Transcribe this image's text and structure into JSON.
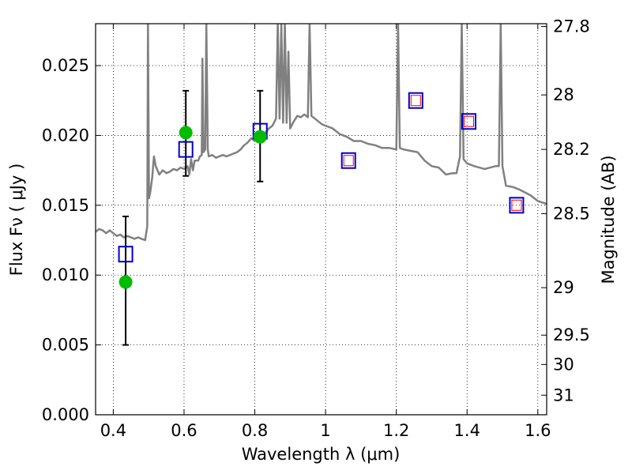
{
  "chart_data": {
    "type": "scatter",
    "xlabel": "Wavelength  λ (μm)",
    "ylabel": "Flux  Fν  ( μJy )",
    "y2label": "Magnitude (AB)",
    "xlim": [
      0.35,
      1.625
    ],
    "ylim": [
      0.0,
      0.028
    ],
    "grid": true,
    "x_ticks": [
      0.4,
      0.6,
      0.8,
      1.0,
      1.2,
      1.4,
      1.6
    ],
    "x_tick_labels": [
      "0.4",
      "0.6",
      "0.8",
      "1",
      "1.2",
      "1.4",
      "1.6"
    ],
    "y_ticks": [
      0.0,
      0.005,
      0.01,
      0.015,
      0.02,
      0.025
    ],
    "y_tick_labels": [
      "0.000",
      "0.005",
      "0.010",
      "0.015",
      "0.020",
      "0.025"
    ],
    "y2_ticks": [
      {
        "label": "27.8",
        "flux": 0.0278
      },
      {
        "label": "28",
        "flux": 0.0229
      },
      {
        "label": "28.2",
        "flux": 0.019
      },
      {
        "label": "28.5",
        "flux": 0.0144
      },
      {
        "label": "29",
        "flux": 0.0091
      },
      {
        "label": "29.5",
        "flux": 0.0057
      },
      {
        "label": "30",
        "flux": 0.0036
      },
      {
        "label": "31",
        "flux": 0.0014
      }
    ],
    "series": [
      {
        "style": "model-spectrum",
        "color": "#808080",
        "points": [
          [
            0.35,
            0.0131
          ],
          [
            0.36,
            0.0133
          ],
          [
            0.37,
            0.0132
          ],
          [
            0.38,
            0.013
          ],
          [
            0.39,
            0.0132
          ],
          [
            0.4,
            0.013
          ],
          [
            0.41,
            0.0128
          ],
          [
            0.42,
            0.0129
          ],
          [
            0.43,
            0.0127
          ],
          [
            0.44,
            0.0128
          ],
          [
            0.45,
            0.0127
          ],
          [
            0.46,
            0.0126
          ],
          [
            0.47,
            0.0127
          ],
          [
            0.48,
            0.0126
          ],
          [
            0.49,
            0.0125
          ],
          [
            0.496,
            0.0135
          ],
          [
            0.498,
            0.028
          ],
          [
            0.501,
            0.0155
          ],
          [
            0.505,
            0.016
          ],
          [
            0.51,
            0.017
          ],
          [
            0.515,
            0.0185
          ],
          [
            0.52,
            0.0178
          ],
          [
            0.53,
            0.0172
          ],
          [
            0.54,
            0.0175
          ],
          [
            0.55,
            0.0173
          ],
          [
            0.56,
            0.0174
          ],
          [
            0.57,
            0.0176
          ],
          [
            0.58,
            0.0175
          ],
          [
            0.59,
            0.0177
          ],
          [
            0.6,
            0.0176
          ],
          [
            0.61,
            0.0178
          ],
          [
            0.615,
            0.0172
          ],
          [
            0.62,
            0.0183
          ],
          [
            0.625,
            0.0175
          ],
          [
            0.63,
            0.0182
          ],
          [
            0.64,
            0.0182
          ],
          [
            0.645,
            0.0185
          ],
          [
            0.65,
            0.0186
          ],
          [
            0.652,
            0.0255
          ],
          [
            0.655,
            0.0188
          ],
          [
            0.66,
            0.019
          ],
          [
            0.663,
            0.028
          ],
          [
            0.667,
            0.019
          ],
          [
            0.67,
            0.0185
          ],
          [
            0.68,
            0.0186
          ],
          [
            0.69,
            0.0184
          ],
          [
            0.7,
            0.0185
          ],
          [
            0.71,
            0.0186
          ],
          [
            0.72,
            0.0185
          ],
          [
            0.73,
            0.0186
          ],
          [
            0.74,
            0.0187
          ],
          [
            0.75,
            0.0188
          ],
          [
            0.76,
            0.019
          ],
          [
            0.77,
            0.0193
          ],
          [
            0.78,
            0.0195
          ],
          [
            0.79,
            0.0198
          ],
          [
            0.8,
            0.0196
          ],
          [
            0.81,
            0.0197
          ],
          [
            0.82,
            0.0199
          ],
          [
            0.83,
            0.0202
          ],
          [
            0.84,
            0.0205
          ],
          [
            0.85,
            0.0207
          ],
          [
            0.86,
            0.0212
          ],
          [
            0.865,
            0.028
          ],
          [
            0.87,
            0.0212
          ],
          [
            0.875,
            0.028
          ],
          [
            0.88,
            0.0209
          ],
          [
            0.885,
            0.028
          ],
          [
            0.89,
            0.0209
          ],
          [
            0.895,
            0.026
          ],
          [
            0.9,
            0.0205
          ],
          [
            0.91,
            0.021
          ],
          [
            0.92,
            0.0214
          ],
          [
            0.93,
            0.0213
          ],
          [
            0.94,
            0.0215
          ],
          [
            0.95,
            0.0213
          ],
          [
            0.955,
            0.028
          ],
          [
            0.96,
            0.0214
          ],
          [
            0.97,
            0.0212
          ],
          [
            0.98,
            0.021
          ],
          [
            0.99,
            0.0208
          ],
          [
            1.0,
            0.0207
          ],
          [
            1.02,
            0.0205
          ],
          [
            1.04,
            0.0201
          ],
          [
            1.06,
            0.0199
          ],
          [
            1.08,
            0.0196
          ],
          [
            1.1,
            0.0196
          ],
          [
            1.12,
            0.0194
          ],
          [
            1.14,
            0.0193
          ],
          [
            1.16,
            0.0191
          ],
          [
            1.18,
            0.0191
          ],
          [
            1.2,
            0.019
          ],
          [
            1.205,
            0.028
          ],
          [
            1.21,
            0.0191
          ],
          [
            1.22,
            0.019
          ],
          [
            1.24,
            0.0189
          ],
          [
            1.26,
            0.0188
          ],
          [
            1.28,
            0.0182
          ],
          [
            1.3,
            0.0178
          ],
          [
            1.32,
            0.0177
          ],
          [
            1.34,
            0.0172
          ],
          [
            1.36,
            0.0173
          ],
          [
            1.37,
            0.0173
          ],
          [
            1.38,
            0.0185
          ],
          [
            1.385,
            0.028
          ],
          [
            1.39,
            0.0183
          ],
          [
            1.4,
            0.018
          ],
          [
            1.42,
            0.0178
          ],
          [
            1.45,
            0.0176
          ],
          [
            1.48,
            0.0178
          ],
          [
            1.49,
            0.0178
          ],
          [
            1.495,
            0.028
          ],
          [
            1.5,
            0.0178
          ],
          [
            1.51,
            0.0164
          ],
          [
            1.53,
            0.0163
          ],
          [
            1.55,
            0.0161
          ],
          [
            1.58,
            0.0157
          ],
          [
            1.6,
            0.0153
          ],
          [
            1.625,
            0.0151
          ]
        ]
      },
      {
        "style": "observed",
        "color": "#00bb00",
        "points": [
          {
            "x": 0.435,
            "y": 0.0095,
            "err_low": 0.005,
            "err_high": 0.0142
          },
          {
            "x": 0.605,
            "y": 0.0202,
            "err_low": 0.0171,
            "err_high": 0.0232
          },
          {
            "x": 0.815,
            "y": 0.0199,
            "err_low": 0.0167,
            "err_high": 0.0232
          }
        ]
      },
      {
        "style": "model-photometry",
        "color": "#0000cc",
        "points": [
          {
            "x": 0.435,
            "y": 0.0115
          },
          {
            "x": 0.605,
            "y": 0.019
          },
          {
            "x": 0.815,
            "y": 0.0203
          },
          {
            "x": 1.065,
            "y": 0.0182
          },
          {
            "x": 1.255,
            "y": 0.0225
          },
          {
            "x": 1.405,
            "y": 0.021
          },
          {
            "x": 1.54,
            "y": 0.015
          }
        ]
      },
      {
        "style": "photometry-inner",
        "color": "#ff0000",
        "points": [
          {
            "x": 1.065,
            "y": 0.0182
          },
          {
            "x": 1.255,
            "y": 0.0225
          },
          {
            "x": 1.405,
            "y": 0.021
          },
          {
            "x": 1.54,
            "y": 0.015
          }
        ]
      }
    ]
  }
}
